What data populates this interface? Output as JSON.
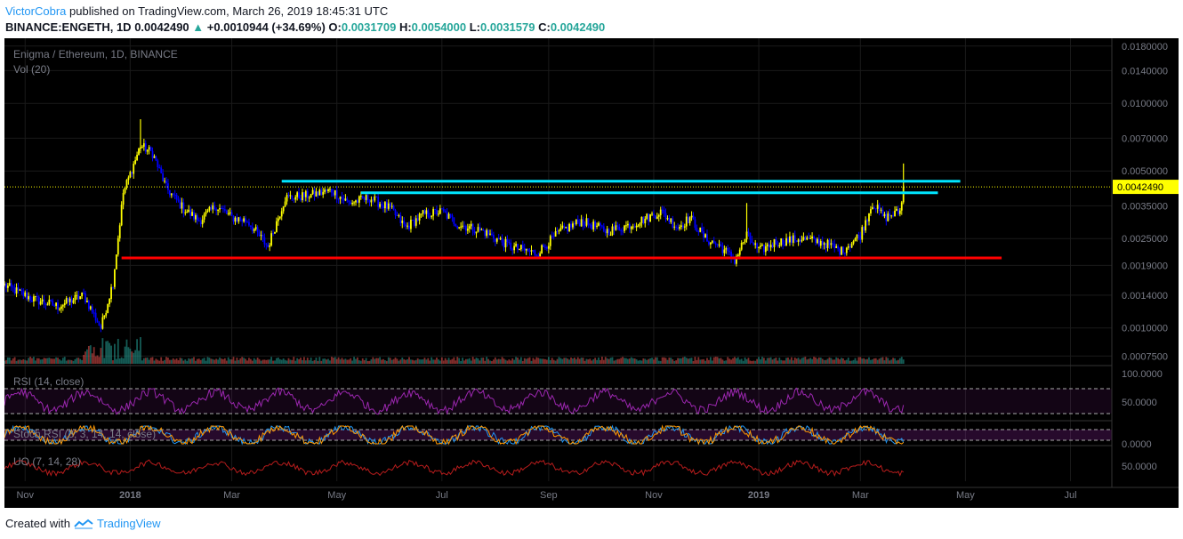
{
  "header": {
    "author": "VictorCobra",
    "published_text": "published on TradingView.com, March 26, 2019 18:45:31 UTC",
    "symbol": "BINANCE:ENGETH, 1D",
    "last": "0.0042490",
    "change_arrow": "▲",
    "change": "+0.0010944 (+34.69%)",
    "o_label": "O:",
    "o": "0.0031709",
    "h_label": "H:",
    "h": "0.0054000",
    "l_label": "L:",
    "l": "0.0031579",
    "c_label": "C:",
    "c": "0.0042490"
  },
  "footer": {
    "created_with": "Created with",
    "brand": "TradingView",
    "logo_icon": "tradingview-logo-icon"
  },
  "colors": {
    "background": "#000000",
    "candle_up": "#ffff00",
    "candle_down": "#0000ff",
    "resistance_line": "#00e5ff",
    "support_line": "#ff0000",
    "rsi": "#9c27b0",
    "uo": "#b71c1c",
    "stoch_k": "#2196f3",
    "stoch_d": "#ff9800",
    "last_price_label": "#ffff00"
  },
  "chart_data": {
    "type": "candlestick",
    "title": "Enigma / Ethereum, 1D, BINANCE",
    "volume_label": "Vol (20)",
    "scale": "log",
    "ylim": [
      0.00068,
      0.0195
    ],
    "price_axis_ticks": [
      "0.0180000",
      "0.0140000",
      "0.0100000",
      "0.0070000",
      "0.0050000",
      "0.0035000",
      "0.0025000",
      "0.0019000",
      "0.0014000",
      "0.0010000",
      "0.0007500"
    ],
    "last_price_label": "0.0042490",
    "time_axis_ticks": [
      "Nov",
      "2018",
      "Mar",
      "May",
      "Jul",
      "Sep",
      "Nov",
      "2019",
      "Mar",
      "May",
      "Jul"
    ],
    "x_start": "2017-10-20",
    "x_end": "2019-07-25",
    "price_path": [
      [
        "2017-10-20",
        0.00155
      ],
      [
        "2017-11-05",
        0.00135
      ],
      [
        "2017-11-20",
        0.00125
      ],
      [
        "2017-12-05",
        0.0014
      ],
      [
        "2017-12-15",
        0.001
      ],
      [
        "2017-12-22",
        0.0016
      ],
      [
        "2017-12-28",
        0.004
      ],
      [
        "2018-01-07",
        0.0065
      ],
      [
        "2018-01-14",
        0.006
      ],
      [
        "2018-01-22",
        0.0042
      ],
      [
        "2018-02-01",
        0.0034
      ],
      [
        "2018-02-10",
        0.003
      ],
      [
        "2018-02-20",
        0.0035
      ],
      [
        "2018-03-01",
        0.0031
      ],
      [
        "2018-03-10",
        0.003
      ],
      [
        "2018-03-22",
        0.0023
      ],
      [
        "2018-04-01",
        0.0038
      ],
      [
        "2018-04-15",
        0.0039
      ],
      [
        "2018-04-28",
        0.0041
      ],
      [
        "2018-05-08",
        0.0036
      ],
      [
        "2018-05-20",
        0.0038
      ],
      [
        "2018-06-01",
        0.0034
      ],
      [
        "2018-06-10",
        0.0028
      ],
      [
        "2018-06-20",
        0.0032
      ],
      [
        "2018-07-01",
        0.0033
      ],
      [
        "2018-07-10",
        0.0029
      ],
      [
        "2018-07-25",
        0.0027
      ],
      [
        "2018-08-10",
        0.0023
      ],
      [
        "2018-08-25",
        0.00215
      ],
      [
        "2018-09-08",
        0.0027
      ],
      [
        "2018-09-20",
        0.003
      ],
      [
        "2018-10-05",
        0.0027
      ],
      [
        "2018-10-20",
        0.0029
      ],
      [
        "2018-11-05",
        0.0033
      ],
      [
        "2018-11-15",
        0.0028
      ],
      [
        "2018-11-22",
        0.0031
      ],
      [
        "2018-12-01",
        0.0025
      ],
      [
        "2018-12-10",
        0.0023
      ],
      [
        "2018-12-18",
        0.002
      ],
      [
        "2018-12-25",
        0.0026
      ],
      [
        "2019-01-01",
        0.0022
      ],
      [
        "2019-01-10",
        0.0024
      ],
      [
        "2019-01-25",
        0.0025
      ],
      [
        "2019-02-08",
        0.0024
      ],
      [
        "2019-02-18",
        0.0022
      ],
      [
        "2019-03-01",
        0.0026
      ],
      [
        "2019-03-08",
        0.0036
      ],
      [
        "2019-03-15",
        0.0031
      ],
      [
        "2019-03-24",
        0.0033
      ],
      [
        "2019-03-26",
        0.004249
      ]
    ],
    "spike_highs": [
      [
        "2018-01-07",
        0.0085
      ],
      [
        "2018-12-25",
        0.0036
      ],
      [
        "2019-03-26",
        0.0054
      ]
    ],
    "resistance_lines": [
      {
        "from": "2018-03-30",
        "to": "2019-04-28",
        "price": 0.0045
      },
      {
        "from": "2018-05-15",
        "to": "2019-04-15",
        "price": 0.004
      }
    ],
    "support_line": {
      "from": "2017-12-27",
      "to": "2019-05-22",
      "price": 0.00205
    },
    "indicators": [
      {
        "name": "RSI (14, close)",
        "axis_label": "50.0000",
        "top_label": "100.0000",
        "levels": [
          70,
          30
        ]
      },
      {
        "name": "Stoch RSI (3, 3, 14, 14, close)",
        "axis_label": "0.0000",
        "levels": [
          80,
          20
        ]
      },
      {
        "name": "UO (7, 14, 28)",
        "axis_label": "50.0000"
      }
    ]
  }
}
